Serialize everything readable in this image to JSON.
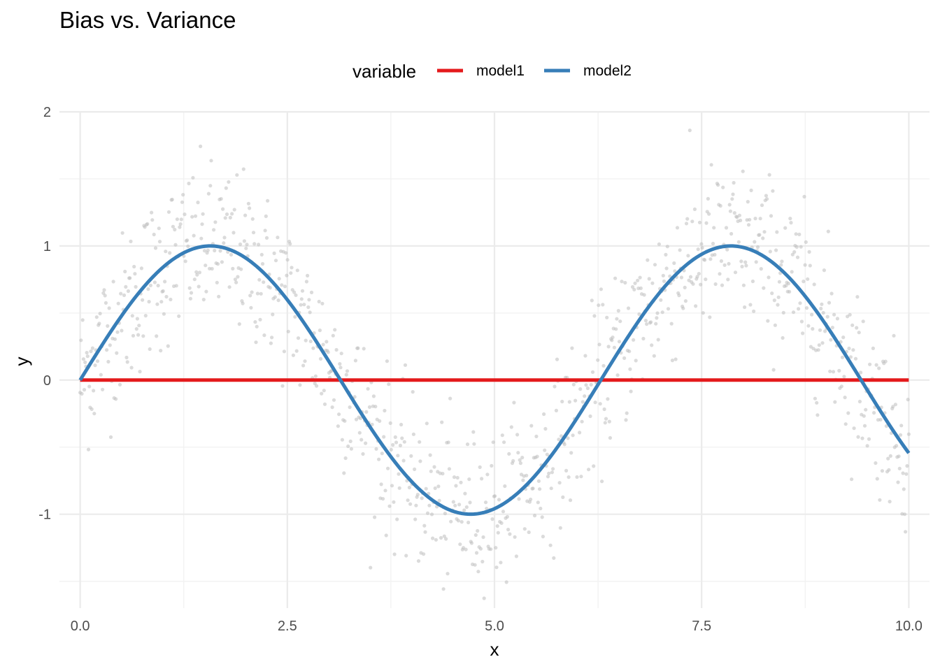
{
  "chart_data": {
    "type": "line",
    "title": "Bias vs. Variance",
    "xlabel": "x",
    "ylabel": "y",
    "xlim": [
      -0.25,
      10.25
    ],
    "ylim": [
      -1.7,
      2.0
    ],
    "x_ticks": [
      0.0,
      2.5,
      5.0,
      7.5,
      10.0
    ],
    "x_tick_labels": [
      "0.0",
      "2.5",
      "5.0",
      "7.5",
      "10.0"
    ],
    "y_ticks": [
      -1,
      0,
      1,
      2
    ],
    "y_tick_labels": [
      "-1",
      "0",
      "1",
      "2"
    ],
    "grid": true,
    "legend": {
      "title": "variable",
      "position": "top",
      "entries": [
        {
          "label": "model1",
          "color": "#e41a1c"
        },
        {
          "label": "model2",
          "color": "#377eb8"
        }
      ]
    },
    "series": [
      {
        "name": "model1",
        "color": "#e41a1c",
        "function": "y = 0",
        "x_range": [
          0,
          10
        ]
      },
      {
        "name": "model2",
        "color": "#377eb8",
        "function": "y = sin(x)",
        "x_range": [
          0,
          10
        ]
      }
    ],
    "scatter": {
      "color": "#bdbdbd",
      "n_points": 1000,
      "x_range": [
        0,
        10
      ],
      "trend": "sin(x)",
      "noise_sd": 0.3
    }
  }
}
